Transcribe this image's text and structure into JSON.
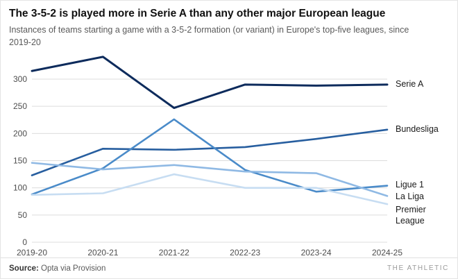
{
  "header": {
    "title": "The 3-5-2 is played more in Serie A than any other major European league",
    "subtitle": "Instances of teams starting a game with a 3-5-2 formation (or variant) in Europe's top-five leagues, since 2019-20"
  },
  "chart_data": {
    "type": "line",
    "categories": [
      "2019-20",
      "2020-21",
      "2021-22",
      "2022-23",
      "2023-24",
      "2024-25"
    ],
    "series": [
      {
        "name": "Serie A",
        "color": "#0d2b5c",
        "values": [
          315,
          341,
          247,
          290,
          288,
          290
        ]
      },
      {
        "name": "Bundesliga",
        "color": "#275e9f",
        "values": [
          123,
          172,
          170,
          175,
          190,
          207
        ]
      },
      {
        "name": "Ligue 1",
        "color": "#4a8bc9",
        "values": [
          88,
          136,
          226,
          133,
          93,
          104
        ]
      },
      {
        "name": "La Liga",
        "color": "#8fb9e4",
        "values": [
          146,
          134,
          142,
          130,
          127,
          85
        ]
      },
      {
        "name": "Premier League",
        "color": "#c7ddf2",
        "values": [
          87,
          90,
          125,
          100,
          100,
          70
        ]
      }
    ],
    "yticks": [
      0,
      50,
      100,
      150,
      200,
      250,
      300
    ],
    "ylim": [
      0,
      350
    ],
    "grid": true,
    "grid_color": "#dcdcdc",
    "legend_position": "right-of-lines",
    "title": "The 3-5-2 is played more in Serie A than any other major European league",
    "xlabel": "",
    "ylabel": ""
  },
  "footer": {
    "source_label": "Source:",
    "source_text": " Opta via Provision",
    "brand": "THE ATHLETIC"
  }
}
